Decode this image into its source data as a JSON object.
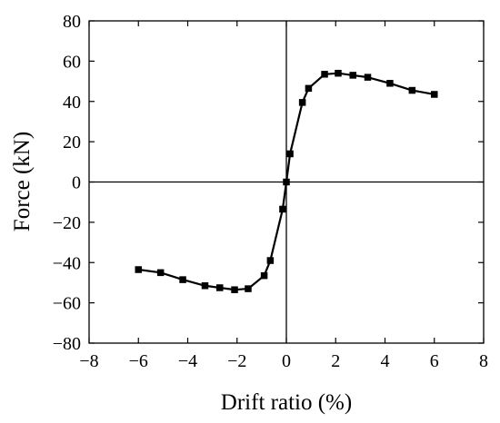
{
  "chart_data": {
    "type": "line",
    "title": "",
    "xlabel": "Drift ratio (%)",
    "ylabel": "Force (kN)",
    "xlim": [
      -8,
      8
    ],
    "ylim": [
      -80,
      80
    ],
    "xticks": [
      -8,
      -6,
      -4,
      -2,
      0,
      2,
      4,
      6,
      8
    ],
    "yticks": [
      -80,
      -60,
      -40,
      -20,
      0,
      20,
      40,
      60,
      80
    ],
    "xtick_labels": [
      "−8",
      "−6",
      "−4",
      "−2",
      "0",
      "2",
      "4",
      "6",
      "8"
    ],
    "ytick_labels": [
      "−80",
      "−60",
      "−40",
      "−20",
      "0",
      "20",
      "40",
      "60",
      "80"
    ],
    "grid": false,
    "zero_lines": true,
    "series": [
      {
        "marker": "square",
        "color": "#000000",
        "x": [
          -6.0,
          -5.1,
          -4.2,
          -3.3,
          -2.7,
          -2.1,
          -1.55,
          -0.9,
          -0.65,
          -0.15,
          0.0,
          0.15,
          0.65,
          0.9,
          1.55,
          2.1,
          2.7,
          3.3,
          4.2,
          5.1,
          6.0
        ],
        "y": [
          -43.5,
          -45.0,
          -48.5,
          -51.5,
          -52.5,
          -53.5,
          -53.0,
          -46.5,
          -39.0,
          -13.5,
          0.0,
          14.0,
          39.5,
          46.5,
          53.5,
          54.0,
          53.0,
          52.0,
          49.0,
          45.5,
          43.5
        ]
      }
    ]
  }
}
